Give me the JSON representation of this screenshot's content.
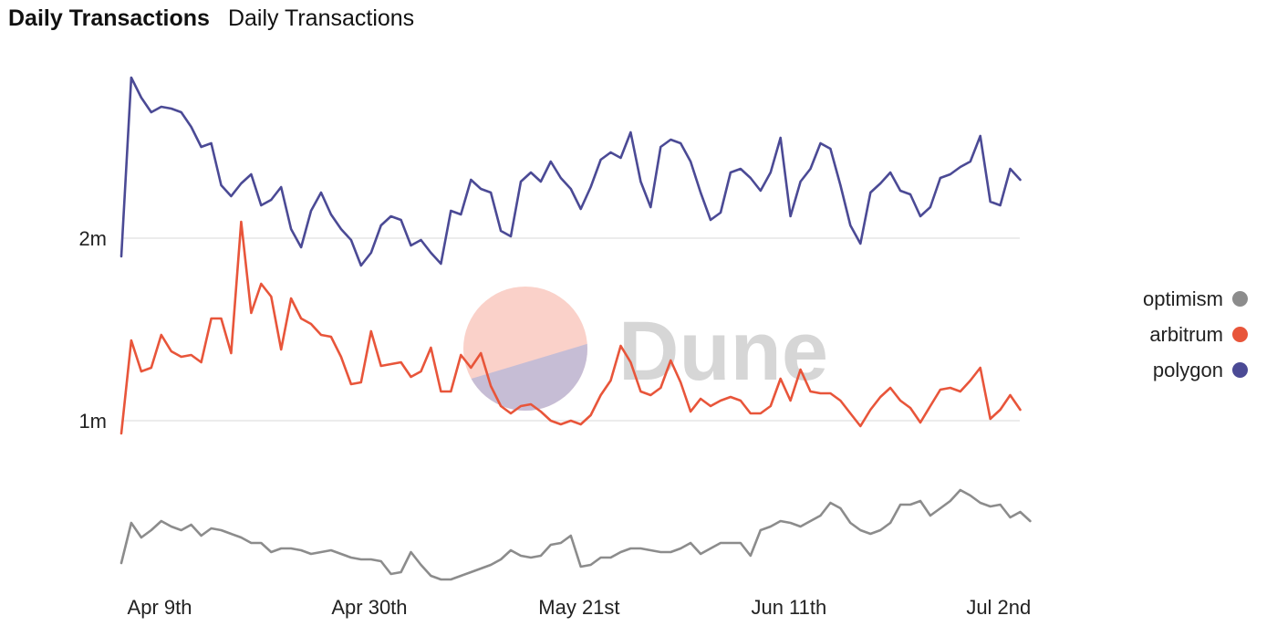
{
  "header": {
    "title": "Daily Transactions",
    "subtitle": "Daily Transactions"
  },
  "watermark": {
    "text": "Dune"
  },
  "colors": {
    "optimism": "#8c8c8c",
    "arbitrum": "#e8553a",
    "polygon": "#4b4a95",
    "grid": "#e6e6e6"
  },
  "chart_data": {
    "type": "line",
    "title": "Daily Transactions",
    "subtitle": "Daily Transactions",
    "x_start": "2022-04-09",
    "x_ticks": [
      {
        "date": "2022-04-09",
        "label": "Apr 9th"
      },
      {
        "date": "2022-04-30",
        "label": "Apr 30th"
      },
      {
        "date": "2022-05-21",
        "label": "May 21st"
      },
      {
        "date": "2022-06-11",
        "label": "Jun 11th"
      },
      {
        "date": "2022-07-02",
        "label": "Jul 2nd"
      }
    ],
    "y_ticks": [
      {
        "value": 1000000,
        "label": "1m"
      },
      {
        "value": 2000000,
        "label": "2m"
      }
    ],
    "ylim": [
      100000,
      2900000
    ],
    "grid": true,
    "legend": "right",
    "series": [
      {
        "name": "optimism",
        "color": "#8c8c8c",
        "values": [
          220000,
          440000,
          360000,
          400000,
          450000,
          420000,
          400000,
          430000,
          370000,
          410000,
          400000,
          380000,
          360000,
          330000,
          330000,
          280000,
          300000,
          300000,
          290000,
          270000,
          280000,
          290000,
          270000,
          250000,
          240000,
          240000,
          230000,
          160000,
          170000,
          280000,
          210000,
          150000,
          130000,
          130000,
          150000,
          170000,
          190000,
          210000,
          240000,
          290000,
          260000,
          250000,
          260000,
          320000,
          330000,
          370000,
          200000,
          210000,
          250000,
          250000,
          280000,
          300000,
          300000,
          290000,
          280000,
          280000,
          300000,
          330000,
          270000,
          300000,
          330000,
          330000,
          330000,
          260000,
          400000,
          420000,
          450000,
          440000,
          420000,
          450000,
          480000,
          550000,
          520000,
          440000,
          400000,
          380000,
          400000,
          440000,
          540000,
          540000,
          560000,
          480000,
          520000,
          560000,
          620000,
          590000,
          550000,
          530000,
          540000,
          470000,
          500000,
          450000
        ]
      },
      {
        "name": "arbitrum",
        "color": "#e8553a",
        "values": [
          930000,
          1440000,
          1270000,
          1290000,
          1470000,
          1380000,
          1350000,
          1360000,
          1320000,
          1560000,
          1560000,
          1370000,
          2090000,
          1590000,
          1750000,
          1680000,
          1390000,
          1670000,
          1560000,
          1530000,
          1470000,
          1460000,
          1350000,
          1200000,
          1210000,
          1490000,
          1300000,
          1310000,
          1320000,
          1240000,
          1270000,
          1400000,
          1160000,
          1160000,
          1360000,
          1290000,
          1370000,
          1190000,
          1080000,
          1040000,
          1080000,
          1090000,
          1050000,
          1000000,
          980000,
          1000000,
          980000,
          1030000,
          1140000,
          1220000,
          1410000,
          1320000,
          1160000,
          1140000,
          1180000,
          1330000,
          1210000,
          1050000,
          1120000,
          1080000,
          1110000,
          1130000,
          1110000,
          1040000,
          1040000,
          1080000,
          1230000,
          1110000,
          1280000,
          1160000,
          1150000,
          1150000,
          1110000,
          1040000,
          970000,
          1060000,
          1130000,
          1180000,
          1110000,
          1070000,
          990000,
          1080000,
          1170000,
          1180000,
          1160000,
          1220000,
          1290000,
          1010000,
          1060000,
          1140000,
          1060000
        ]
      },
      {
        "name": "polygon",
        "color": "#4b4a95",
        "values": [
          1900000,
          2880000,
          2770000,
          2690000,
          2720000,
          2710000,
          2690000,
          2610000,
          2500000,
          2520000,
          2290000,
          2230000,
          2300000,
          2350000,
          2180000,
          2210000,
          2280000,
          2050000,
          1950000,
          2150000,
          2250000,
          2130000,
          2050000,
          1990000,
          1850000,
          1920000,
          2070000,
          2120000,
          2100000,
          1960000,
          1990000,
          1920000,
          1860000,
          2150000,
          2130000,
          2320000,
          2270000,
          2250000,
          2040000,
          2010000,
          2310000,
          2360000,
          2310000,
          2420000,
          2330000,
          2270000,
          2160000,
          2280000,
          2430000,
          2470000,
          2440000,
          2580000,
          2310000,
          2170000,
          2500000,
          2540000,
          2520000,
          2420000,
          2250000,
          2100000,
          2140000,
          2360000,
          2380000,
          2330000,
          2260000,
          2360000,
          2550000,
          2120000,
          2310000,
          2380000,
          2520000,
          2490000,
          2290000,
          2070000,
          1970000,
          2250000,
          2300000,
          2360000,
          2260000,
          2240000,
          2120000,
          2170000,
          2330000,
          2350000,
          2390000,
          2420000,
          2560000,
          2200000,
          2180000,
          2380000,
          2320000
        ]
      }
    ]
  }
}
